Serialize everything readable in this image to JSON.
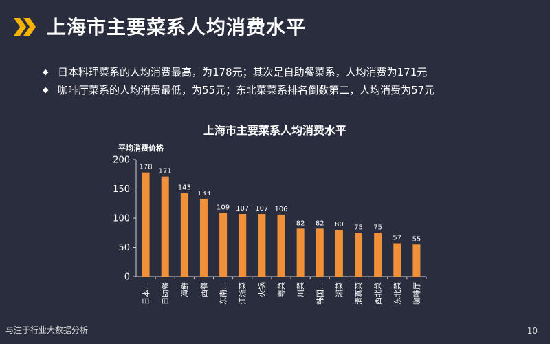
{
  "slide": {
    "title": "上海市主要菜系人均消费水平",
    "bullets": [
      "日本料理菜系的人均消费最高，为178元；其次是自助餐菜系，人均消费为171元",
      "咖啡厅菜系的人均消费最低，为55元；东北菜菜系排名倒数第二，人均消费为57元"
    ],
    "footer": "与注于行业大数据分析",
    "page_number": "10",
    "bullet_icon": "diamond-icon",
    "logo_icon": "double-chevron-logo-icon"
  },
  "colors": {
    "background": "#2a2d3e",
    "bar": "#f0913a",
    "axis": "#d0d0d0",
    "logo": "#f5b400"
  },
  "chart_data": {
    "type": "bar",
    "title": "上海市主要菜系人均消费水平",
    "ylabel": "平均消费价格",
    "xlabel": "",
    "ylim": [
      0,
      200
    ],
    "yticks": [
      0,
      50,
      100,
      150,
      200
    ],
    "grid": false,
    "categories": [
      "日本…",
      "自助餐",
      "海鲜",
      "西餐",
      "东南…",
      "江浙菜",
      "火锅",
      "粤菜",
      "川菜",
      "韩国…",
      "湘菜",
      "清真菜",
      "西北菜",
      "东北菜",
      "咖啡厅"
    ],
    "values": [
      178,
      171,
      143,
      133,
      109,
      107,
      107,
      106,
      82,
      82,
      80,
      75,
      75,
      57,
      55
    ]
  }
}
